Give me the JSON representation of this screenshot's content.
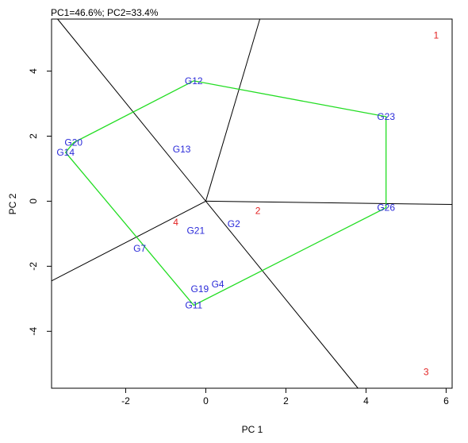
{
  "chart_data": {
    "type": "scatter",
    "title": "PC1=46.6%; PC2=33.4%",
    "xlabel": "PC 1",
    "ylabel": "PC 2",
    "xlim": [
      -3.85,
      6.15
    ],
    "ylim": [
      -5.75,
      5.6
    ],
    "xticks": [
      "-2",
      "0",
      "2",
      "4",
      "6"
    ],
    "yticks": [
      "-4",
      "-2",
      "0",
      "2",
      "4"
    ],
    "xtick_values": [
      -2,
      0,
      2,
      4,
      6
    ],
    "ytick_values": [
      -4,
      -2,
      0,
      2,
      4
    ],
    "grid": false,
    "genotypes": [
      {
        "label": "G12",
        "x": -0.3,
        "y": 3.7
      },
      {
        "label": "G23",
        "x": 4.5,
        "y": 2.6
      },
      {
        "label": "G20",
        "x": -3.3,
        "y": 1.8
      },
      {
        "label": "G14",
        "x": -3.5,
        "y": 1.5
      },
      {
        "label": "G13",
        "x": -0.6,
        "y": 1.6
      },
      {
        "label": "G26",
        "x": 4.5,
        "y": -0.2
      },
      {
        "label": "G2",
        "x": 0.7,
        "y": -0.7
      },
      {
        "label": "G21",
        "x": -0.25,
        "y": -0.9
      },
      {
        "label": "G7",
        "x": -1.65,
        "y": -1.45
      },
      {
        "label": "G19",
        "x": -0.15,
        "y": -2.7
      },
      {
        "label": "G4",
        "x": 0.3,
        "y": -2.55
      },
      {
        "label": "G11",
        "x": -0.3,
        "y": -3.2
      }
    ],
    "environments": [
      {
        "label": "1",
        "x": 5.75,
        "y": 5.1
      },
      {
        "label": "2",
        "x": 1.3,
        "y": -0.3
      },
      {
        "label": "3",
        "x": 5.5,
        "y": -5.25
      },
      {
        "label": "4",
        "x": -0.75,
        "y": -0.65
      }
    ],
    "hull": [
      {
        "x": -0.3,
        "y": 3.7
      },
      {
        "x": 4.5,
        "y": 2.6
      },
      {
        "x": 4.5,
        "y": -0.2
      },
      {
        "x": -0.3,
        "y": -3.2
      },
      {
        "x": -3.5,
        "y": 1.5
      },
      {
        "x": -3.3,
        "y": 1.8
      }
    ],
    "rays": [
      {
        "x": 1.35,
        "y": 5.6
      },
      {
        "x": 6.15,
        "y": -0.1
      },
      {
        "x": 3.8,
        "y": -5.75
      },
      {
        "x": -3.85,
        "y": -2.45
      },
      {
        "x": -3.7,
        "y": 5.6
      }
    ],
    "colors": {
      "genotype": "#2b2bd9",
      "environment": "#e32222",
      "hull": "#22dd22",
      "ray": "#000000"
    }
  }
}
